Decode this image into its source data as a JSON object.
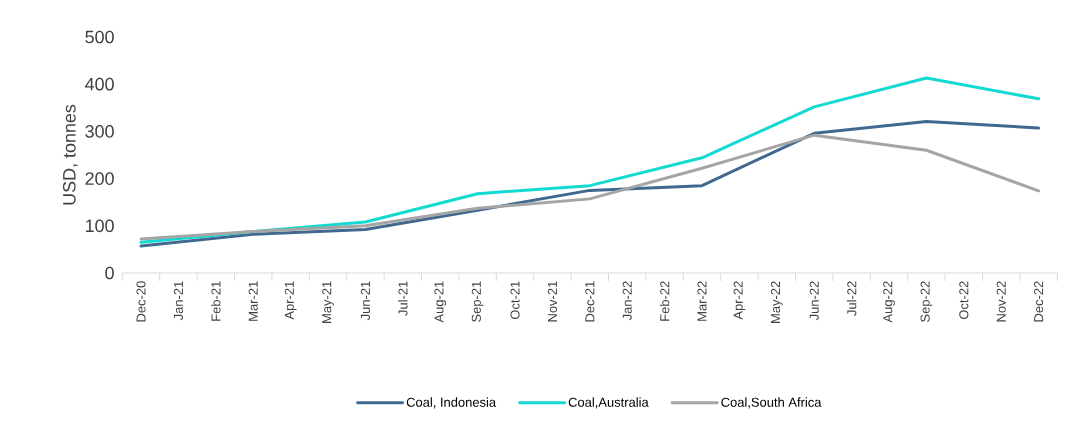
{
  "chart_data": {
    "type": "line",
    "ylabel": "USD, tonnes",
    "categories": [
      "Dec-20",
      "Jan-21",
      "Feb-21",
      "Mar-21",
      "Apr-21",
      "May-21",
      "Jun-21",
      "Jul-21",
      "Aug-21",
      "Sep-21",
      "Oct-21",
      "Nov-21",
      "Dec-21",
      "Jan-22",
      "Feb-22",
      "Mar-22",
      "Apr-22",
      "May-22",
      "Jun-22",
      "Jul-22",
      "Aug-22",
      "Sep-22",
      "Oct-22",
      "Nov-22",
      "Dec-22"
    ],
    "series": [
      {
        "name": "Coal, Indonesia",
        "color": "#41698f",
        "values": [
          57,
          null,
          null,
          82,
          null,
          null,
          92,
          null,
          null,
          133,
          null,
          null,
          175,
          null,
          null,
          185,
          null,
          null,
          296,
          null,
          null,
          321,
          null,
          null,
          307
        ]
      },
      {
        "name": "Coal,Australia",
        "color": "#12d9d1",
        "values": [
          65,
          null,
          null,
          88,
          null,
          null,
          108,
          null,
          null,
          168,
          null,
          null,
          185,
          null,
          null,
          244,
          null,
          null,
          352,
          null,
          null,
          413,
          null,
          null,
          369
        ]
      },
      {
        "name": "Coal,South Africa",
        "color": "#a5a5a5",
        "values": [
          72,
          null,
          null,
          88,
          null,
          null,
          100,
          null,
          null,
          137,
          null,
          null,
          157,
          null,
          null,
          222,
          null,
          null,
          292,
          null,
          null,
          260,
          null,
          null,
          174
        ]
      }
    ],
    "ylim": [
      0,
      500
    ],
    "yticks": [
      0,
      100,
      200,
      300,
      400,
      500
    ],
    "legend": "bottom",
    "marker": "none",
    "line_style": "solid"
  }
}
